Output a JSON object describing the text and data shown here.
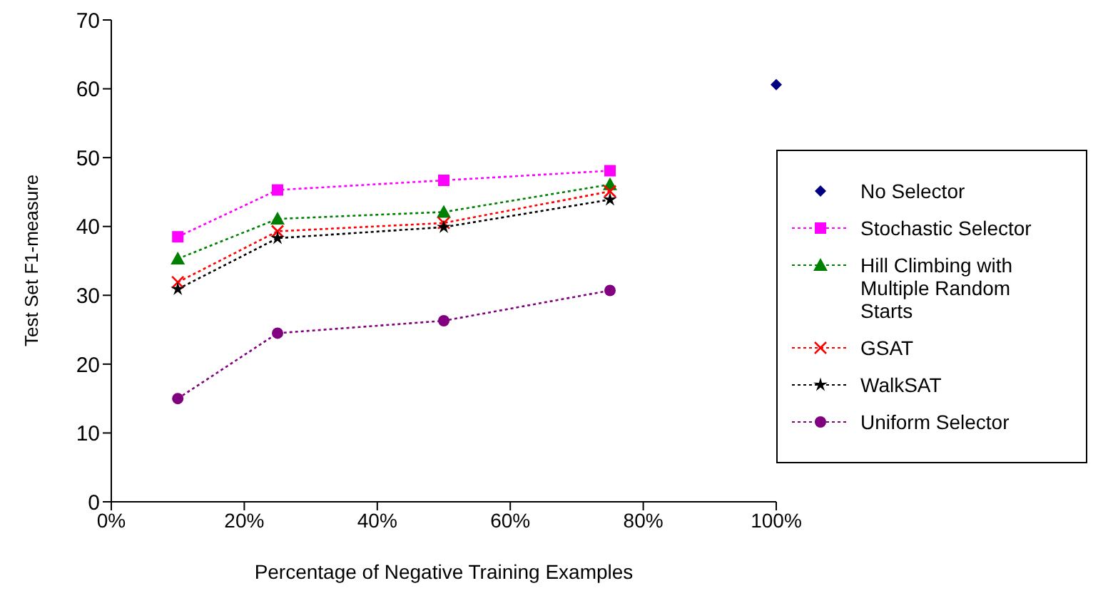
{
  "chart_data": {
    "type": "line",
    "xlabel": "Percentage of Negative Training Examples",
    "ylabel": "Test Set F1-measure",
    "xlim": [
      0,
      100
    ],
    "xticks": [
      {
        "value": 0,
        "label": "0%"
      },
      {
        "value": 20,
        "label": "20%"
      },
      {
        "value": 40,
        "label": "40%"
      },
      {
        "value": 60,
        "label": "60%"
      },
      {
        "value": 80,
        "label": "80%"
      },
      {
        "value": 100,
        "label": "100%"
      }
    ],
    "ylim": [
      0,
      70
    ],
    "yticks": [
      0,
      10,
      20,
      30,
      40,
      50,
      60,
      70
    ],
    "legend": "right",
    "line_style": "dotted",
    "series": [
      {
        "name": "No Selector",
        "type": "scatter",
        "marker": "diamond",
        "color": "#000080",
        "x": [
          100
        ],
        "values": [
          60.6
        ]
      },
      {
        "name": "Stochastic Selector",
        "marker": "square",
        "color": "#ff00ff",
        "x": [
          10,
          25,
          50,
          75
        ],
        "values": [
          38.5,
          45.3,
          46.7,
          48.1
        ]
      },
      {
        "name": "Hill Climbing with Multiple Random Starts",
        "marker": "triangle",
        "color": "#008000",
        "x": [
          10,
          25,
          50,
          75
        ],
        "values": [
          35.3,
          41.1,
          42.1,
          46.1
        ]
      },
      {
        "name": "GSAT",
        "marker": "cross",
        "color": "#ff0000",
        "x": [
          10,
          25,
          50,
          75
        ],
        "values": [
          31.9,
          39.3,
          40.5,
          45.1
        ]
      },
      {
        "name": "WalkSAT",
        "marker": "star",
        "color": "#000000",
        "x": [
          10,
          25,
          50,
          75
        ],
        "values": [
          30.9,
          38.3,
          39.9,
          43.9
        ]
      },
      {
        "name": "Uniform Selector",
        "marker": "circle",
        "color": "#800080",
        "x": [
          10,
          25,
          50,
          75
        ],
        "values": [
          15.0,
          24.5,
          26.3,
          30.7
        ]
      }
    ]
  }
}
